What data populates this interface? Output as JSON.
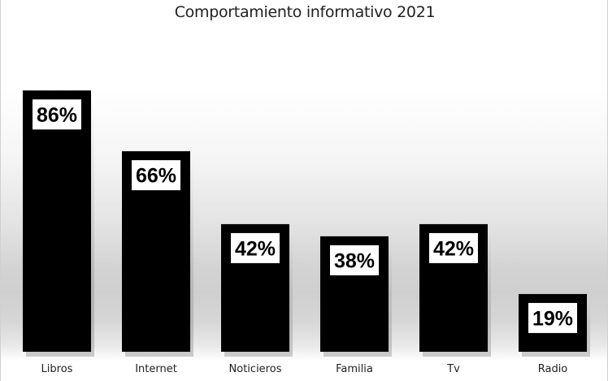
{
  "chart_data": {
    "type": "bar",
    "title": "Comportamiento informativo 2021",
    "categories": [
      "Libros",
      "Internet",
      "Noticieros",
      "Familia",
      "Tv",
      "Radio"
    ],
    "values": [
      86,
      66,
      42,
      38,
      42,
      19
    ],
    "data_labels": [
      "86%",
      "66%",
      "42%",
      "38%",
      "42%",
      "19%"
    ],
    "xlabel": "",
    "ylabel": "",
    "ylim": [
      0,
      100
    ],
    "grid": false,
    "legend": "none",
    "bar_color": "#000000",
    "label_box_color": "#ffffff",
    "label_text_color": "#000000"
  }
}
